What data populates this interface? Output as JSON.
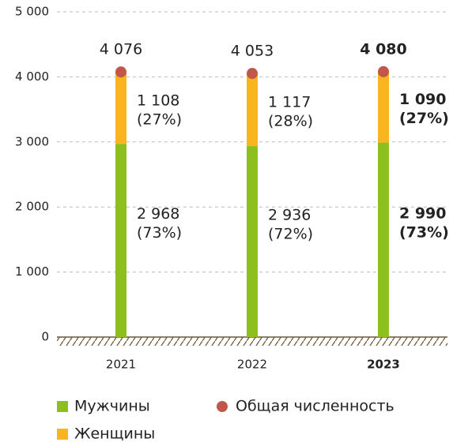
{
  "chart_data": {
    "type": "stacked_bar",
    "categories": [
      "2021",
      "2022",
      "2023"
    ],
    "highlight": "2023",
    "series": [
      {
        "name": "Мужчины",
        "color": "#8dbf1f",
        "values": [
          2968,
          2936,
          2990
        ],
        "value_labels": [
          "2 968",
          "2 936",
          "2 990"
        ],
        "share_labels": [
          "(73%)",
          "(72%)",
          "(73%)"
        ]
      },
      {
        "name": "Женщины",
        "color": "#f9b51f",
        "values": [
          1108,
          1117,
          1090
        ],
        "value_labels": [
          "1 108",
          "1 117",
          "1 090"
        ],
        "share_labels": [
          "(27%)",
          "(28%)",
          "(27%)"
        ]
      }
    ],
    "totals": {
      "name": "Общая численность",
      "color": "#c0574a",
      "values": [
        4076,
        4053,
        4080
      ],
      "value_labels": [
        "4 076",
        "4 053",
        "4 080"
      ]
    },
    "ylim": [
      0,
      5000
    ],
    "yticks": [
      0,
      {
        "value": 1000,
        "label": "1 000"
      },
      {
        "value": 2000,
        "label": "2 000"
      },
      {
        "value": 3000,
        "label": "3 000"
      },
      {
        "value": 4000,
        "label": "4 000"
      },
      {
        "value": 5000,
        "label": "5 000"
      }
    ],
    "grid": true
  }
}
